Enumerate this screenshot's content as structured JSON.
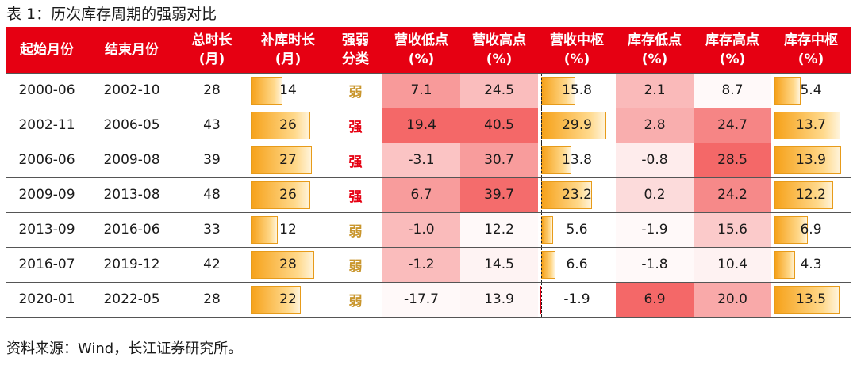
{
  "title": "表 1：历次库存周期的强弱对比",
  "source": "资料来源：Wind，长江证券研究所。",
  "columns": [
    {
      "line1": "起始月份",
      "line2": ""
    },
    {
      "line1": "结束月份",
      "line2": ""
    },
    {
      "line1": "总时长",
      "line2": "(月)"
    },
    {
      "line1": "补库时长",
      "line2": "(月)"
    },
    {
      "line1": "强弱",
      "line2": "分类"
    },
    {
      "line1": "营收低点",
      "line2": "(%)"
    },
    {
      "line1": "营收高点",
      "line2": "(%)"
    },
    {
      "line1": "营收中枢",
      "line2": "(%)"
    },
    {
      "line1": "库存低点",
      "line2": "(%)"
    },
    {
      "line1": "库存高点",
      "line2": "(%)"
    },
    {
      "line1": "库存中枢",
      "line2": "(%)"
    }
  ],
  "chart_data": {
    "type": "table",
    "title": "表 1：历次库存周期的强弱对比",
    "rows": [
      {
        "start": "2000-06",
        "end": "2002-10",
        "total": "28",
        "restock": "14",
        "class": "弱",
        "rev_low": "7.1",
        "rev_high": "24.5",
        "rev_mid": "15.8",
        "inv_low": "2.1",
        "inv_high": "8.7",
        "inv_mid": "5.4"
      },
      {
        "start": "2002-11",
        "end": "2006-05",
        "total": "43",
        "restock": "26",
        "class": "强",
        "rev_low": "19.4",
        "rev_high": "40.5",
        "rev_mid": "29.9",
        "inv_low": "2.8",
        "inv_high": "24.7",
        "inv_mid": "13.7"
      },
      {
        "start": "2006-06",
        "end": "2009-08",
        "total": "39",
        "restock": "27",
        "class": "强",
        "rev_low": "-3.1",
        "rev_high": "30.7",
        "rev_mid": "13.8",
        "inv_low": "-0.8",
        "inv_high": "28.5",
        "inv_mid": "13.9"
      },
      {
        "start": "2009-09",
        "end": "2013-08",
        "total": "48",
        "restock": "26",
        "class": "强",
        "rev_low": "6.7",
        "rev_high": "39.7",
        "rev_mid": "23.2",
        "inv_low": "0.2",
        "inv_high": "24.2",
        "inv_mid": "12.2"
      },
      {
        "start": "2013-09",
        "end": "2016-06",
        "total": "33",
        "restock": "12",
        "class": "弱",
        "rev_low": "-1.0",
        "rev_high": "12.2",
        "rev_mid": "5.6",
        "inv_low": "-1.9",
        "inv_high": "15.6",
        "inv_mid": "6.9"
      },
      {
        "start": "2016-07",
        "end": "2019-12",
        "total": "42",
        "restock": "28",
        "class": "弱",
        "rev_low": "-1.2",
        "rev_high": "14.5",
        "rev_mid": "6.6",
        "inv_low": "-1.8",
        "inv_high": "10.4",
        "inv_mid": "4.3"
      },
      {
        "start": "2020-01",
        "end": "2022-05",
        "total": "28",
        "restock": "22",
        "class": "弱",
        "rev_low": "-17.7",
        "rev_high": "13.9",
        "rev_mid": "-1.9",
        "inv_low": "6.9",
        "inv_high": "20.0",
        "inv_mid": "13.5"
      }
    ],
    "bar_columns": [
      "restock",
      "rev_mid",
      "inv_mid"
    ],
    "heat_columns": [
      "rev_low",
      "rev_high",
      "inv_low",
      "inv_high"
    ],
    "colors": {
      "header_bg": "#e60012",
      "header_text": "#ffffff",
      "bar_fill": "#f6a21b",
      "strong": "#e60012",
      "weak": "#c9962d",
      "heat_max": "#f46868",
      "heat_min": "#ffffff"
    }
  }
}
